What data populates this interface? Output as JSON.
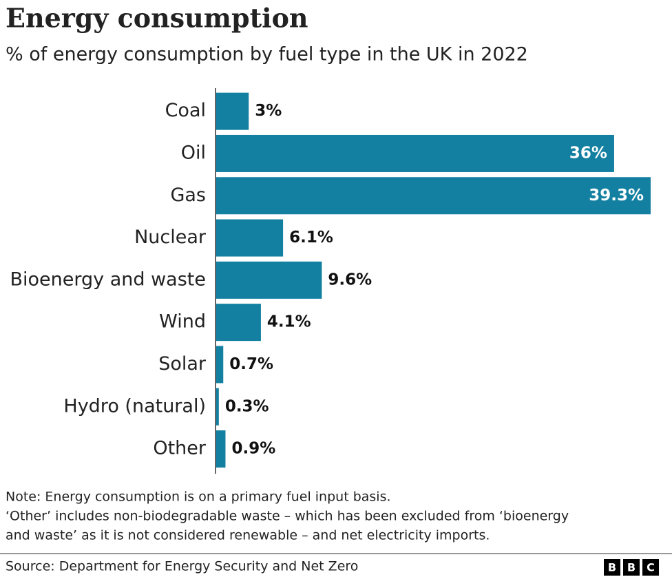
{
  "chart_data": {
    "type": "hbar",
    "title": "Energy consumption",
    "subtitle": "% of energy consumption by fuel type in the UK in 2022",
    "categories": [
      "Coal",
      "Oil",
      "Gas",
      "Nuclear",
      "Bioenergy and waste",
      "Wind",
      "Solar",
      "Hydro (natural)",
      "Other"
    ],
    "values": [
      3,
      36,
      39.3,
      6.1,
      9.6,
      4.1,
      0.7,
      0.3,
      0.9
    ],
    "value_labels": [
      "3%",
      "36%",
      "39.3%",
      "6.1%",
      "9.6%",
      "4.1%",
      "0.7%",
      "0.3%",
      "0.9%"
    ],
    "color": "#1380a1",
    "note": [
      "Note: Energy consumption is on a primary fuel input basis.",
      "‘Other’ includes non-biodegradable waste – which has been excluded from ‘bioenergy",
      "and waste’ as it is not considered renewable – and net electricity imports."
    ],
    "source": "Source: Department for Energy Security and Net Zero",
    "logo": [
      "B",
      "B",
      "C"
    ]
  }
}
